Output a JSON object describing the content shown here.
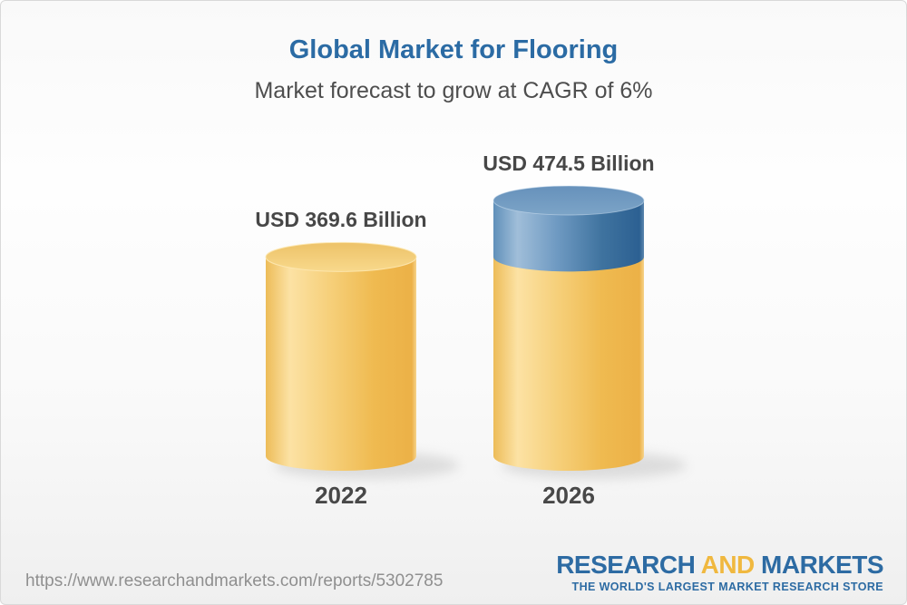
{
  "header": {
    "title": "Global Market for Flooring",
    "subtitle": "Market forecast to grow at CAGR of 6%",
    "title_color": "#2b6ba4"
  },
  "chart_data": {
    "type": "bar",
    "style": "3d-cylinder",
    "title": "Global Market for Flooring",
    "subtitle": "Market forecast to grow at CAGR of 6%",
    "cagr_pct": 6,
    "unit": "USD Billion",
    "categories": [
      "2022",
      "2026"
    ],
    "values": [
      369.6,
      474.5
    ],
    "value_labels": [
      "USD 369.6 Billion",
      "USD 474.5 Billion"
    ],
    "bars": [
      {
        "category": "2022",
        "value": 369.6,
        "label": "USD 369.6 Billion",
        "segments": [
          {
            "value": 369.6,
            "color_key": "base"
          }
        ]
      },
      {
        "category": "2026",
        "value": 474.5,
        "label": "USD 474.5 Billion",
        "segments": [
          {
            "value": 369.6,
            "color_key": "base"
          },
          {
            "value": 104.9,
            "color_key": "growth"
          }
        ]
      }
    ],
    "colors": {
      "base": "#f5cf7d",
      "growth": "#4c80b0"
    },
    "legend": "none",
    "grid": false,
    "axes_visible": false
  },
  "footer": {
    "url": "https://www.researchandmarkets.com/reports/5302785",
    "logo": {
      "word1": "RESEARCH",
      "word2": "AND",
      "word3": "MARKETS",
      "tagline": "THE WORLD'S LARGEST MARKET RESEARCH STORE",
      "blue": "#2d6ba3",
      "gold": "#f0b83f"
    }
  }
}
